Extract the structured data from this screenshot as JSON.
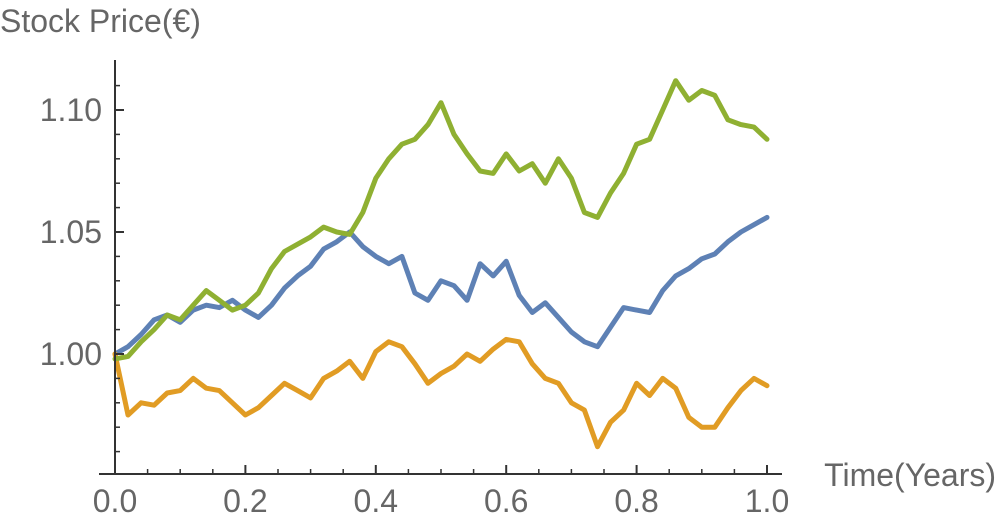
{
  "chart_data": {
    "type": "line",
    "xlabel": "Time(Years)",
    "ylabel": "Stock Price(€)",
    "xlim": [
      0.0,
      1.0
    ],
    "ylim": [
      0.955,
      1.12
    ],
    "xticks": [
      "0.0",
      "0.2",
      "0.4",
      "0.6",
      "0.8",
      "1.0"
    ],
    "yticks": [
      "1.00",
      "1.05",
      "1.10"
    ],
    "grid": false,
    "series": [
      {
        "color": "#5E81B5",
        "x": [
          0.0,
          0.02,
          0.04,
          0.06,
          0.08,
          0.1,
          0.12,
          0.14,
          0.16,
          0.18,
          0.2,
          0.22,
          0.24,
          0.26,
          0.28,
          0.3,
          0.32,
          0.34,
          0.36,
          0.38,
          0.4,
          0.42,
          0.44,
          0.46,
          0.48,
          0.5,
          0.52,
          0.54,
          0.56,
          0.58,
          0.6,
          0.62,
          0.64,
          0.66,
          0.68,
          0.7,
          0.72,
          0.74,
          0.76,
          0.78,
          0.8,
          0.82,
          0.84,
          0.86,
          0.88,
          0.9,
          0.92,
          0.94,
          0.96,
          0.98,
          1.0
        ],
        "values": [
          1.0,
          1.003,
          1.008,
          1.014,
          1.016,
          1.013,
          1.018,
          1.02,
          1.019,
          1.022,
          1.018,
          1.015,
          1.02,
          1.027,
          1.032,
          1.036,
          1.043,
          1.046,
          1.05,
          1.044,
          1.04,
          1.037,
          1.04,
          1.025,
          1.022,
          1.03,
          1.028,
          1.022,
          1.037,
          1.032,
          1.038,
          1.024,
          1.017,
          1.021,
          1.015,
          1.009,
          1.005,
          1.003,
          1.011,
          1.019,
          1.018,
          1.017,
          1.026,
          1.032,
          1.035,
          1.039,
          1.041,
          1.046,
          1.05,
          1.053,
          1.056
        ]
      },
      {
        "color": "#E19C24",
        "x": [
          0.0,
          0.02,
          0.04,
          0.06,
          0.08,
          0.1,
          0.12,
          0.14,
          0.16,
          0.18,
          0.2,
          0.22,
          0.24,
          0.26,
          0.28,
          0.3,
          0.32,
          0.34,
          0.36,
          0.38,
          0.4,
          0.42,
          0.44,
          0.46,
          0.48,
          0.5,
          0.52,
          0.54,
          0.56,
          0.58,
          0.6,
          0.62,
          0.64,
          0.66,
          0.68,
          0.7,
          0.72,
          0.74,
          0.76,
          0.78,
          0.8,
          0.82,
          0.84,
          0.86,
          0.88,
          0.9,
          0.92,
          0.94,
          0.96,
          0.98,
          1.0
        ],
        "values": [
          1.0,
          0.975,
          0.98,
          0.979,
          0.984,
          0.985,
          0.99,
          0.986,
          0.985,
          0.98,
          0.975,
          0.978,
          0.983,
          0.988,
          0.985,
          0.982,
          0.99,
          0.993,
          0.997,
          0.99,
          1.001,
          1.005,
          1.003,
          0.996,
          0.988,
          0.992,
          0.995,
          1.0,
          0.997,
          1.002,
          1.006,
          1.005,
          0.996,
          0.99,
          0.988,
          0.98,
          0.977,
          0.962,
          0.972,
          0.977,
          0.988,
          0.983,
          0.99,
          0.986,
          0.974,
          0.97,
          0.97,
          0.978,
          0.985,
          0.99,
          0.987
        ]
      },
      {
        "color": "#8FB032",
        "x": [
          0.0,
          0.02,
          0.04,
          0.06,
          0.08,
          0.1,
          0.12,
          0.14,
          0.16,
          0.18,
          0.2,
          0.22,
          0.24,
          0.26,
          0.28,
          0.3,
          0.32,
          0.34,
          0.36,
          0.38,
          0.4,
          0.42,
          0.44,
          0.46,
          0.48,
          0.5,
          0.52,
          0.54,
          0.56,
          0.58,
          0.6,
          0.62,
          0.64,
          0.66,
          0.68,
          0.7,
          0.72,
          0.74,
          0.76,
          0.78,
          0.8,
          0.82,
          0.84,
          0.86,
          0.88,
          0.9,
          0.92,
          0.94,
          0.96,
          0.98,
          1.0
        ],
        "values": [
          0.998,
          0.999,
          1.005,
          1.01,
          1.016,
          1.014,
          1.02,
          1.026,
          1.022,
          1.018,
          1.02,
          1.025,
          1.035,
          1.042,
          1.045,
          1.048,
          1.052,
          1.05,
          1.049,
          1.058,
          1.072,
          1.08,
          1.086,
          1.088,
          1.094,
          1.103,
          1.09,
          1.082,
          1.075,
          1.074,
          1.082,
          1.075,
          1.078,
          1.07,
          1.08,
          1.072,
          1.058,
          1.056,
          1.066,
          1.074,
          1.086,
          1.088,
          1.1,
          1.112,
          1.104,
          1.108,
          1.106,
          1.096,
          1.094,
          1.093,
          1.088
        ]
      }
    ]
  }
}
